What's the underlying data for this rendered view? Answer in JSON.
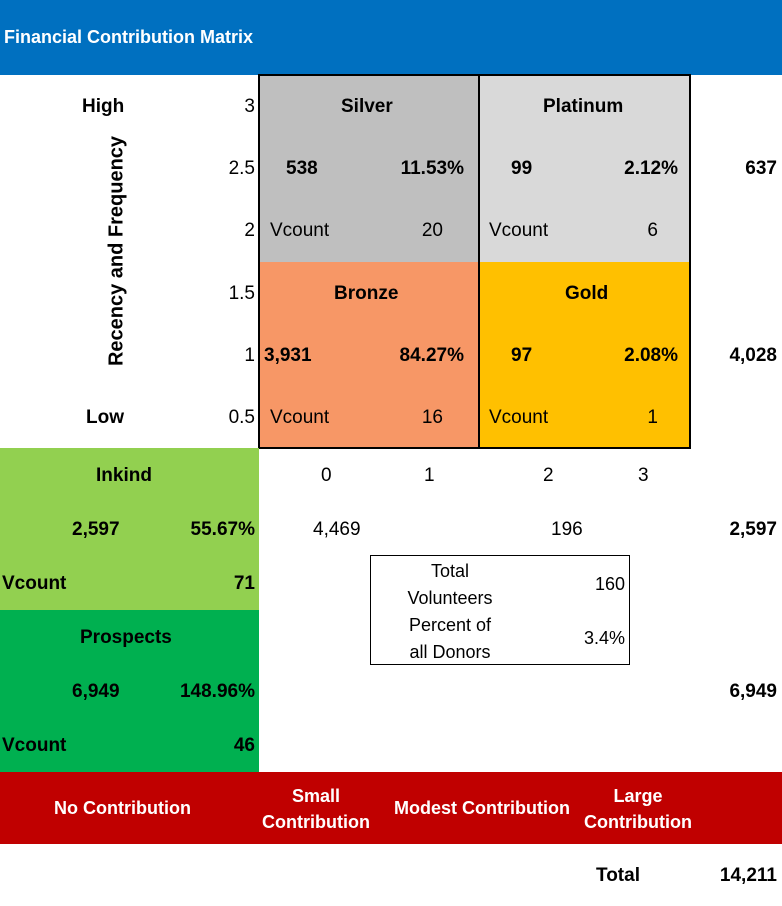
{
  "title": "Financial Contribution Matrix",
  "y_axis": {
    "label": "Recency and Frequency",
    "high": "High",
    "low": "Low",
    "ticks": [
      "3",
      "2.5",
      "2",
      "1.5",
      "1",
      "0.5"
    ]
  },
  "x_axis": {
    "ticks": [
      "0",
      "1",
      "2",
      "3"
    ]
  },
  "quadrants": {
    "silver": {
      "name": "Silver",
      "count": "538",
      "percent": "11.53%",
      "vcount_label": "Vcount",
      "vcount": "20",
      "color": "#bfbfbf"
    },
    "platinum": {
      "name": "Platinum",
      "count": "99",
      "percent": "2.12%",
      "vcount_label": "Vcount",
      "vcount": "6",
      "color": "#d9d9d9"
    },
    "bronze": {
      "name": "Bronze",
      "count": "3,931",
      "percent": "84.27%",
      "vcount_label": "Vcount",
      "vcount": "16",
      "color": "#f79766"
    },
    "gold": {
      "name": "Gold",
      "count": "97",
      "percent": "2.08%",
      "vcount_label": "Vcount",
      "vcount": "1",
      "color": "#ffc000"
    }
  },
  "inkind": {
    "name": "Inkind",
    "count": "2,597",
    "percent": "55.67%",
    "vcount_label": "Vcount",
    "vcount": "71",
    "color": "#92d050"
  },
  "prospects": {
    "name": "Prospects",
    "count": "6,949",
    "percent": "148.96%",
    "vcount_label": "Vcount",
    "vcount": "46",
    "color": "#00b050"
  },
  "row_totals": {
    "upper": "637",
    "lower": "4,028",
    "inkind": "2,597",
    "prospects": "6,949"
  },
  "column_totals": {
    "left": "4,469",
    "right": "196"
  },
  "volunteers_box": {
    "total_label_1": "Total",
    "total_label_2": "Volunteers",
    "total_value": "160",
    "percent_label_1": "Percent of",
    "percent_label_2": "all Donors",
    "percent_value": "3.4%"
  },
  "contribution_levels": {
    "none": "No Contribution",
    "small_1": "Small",
    "small_2": "Contribution",
    "modest": "Modest Contribution",
    "large_1": "Large",
    "large_2": "Contribution"
  },
  "grand_total": {
    "label": "Total",
    "value": "14,211"
  },
  "colors": {
    "title_bar": "#0070c0",
    "footer_bar": "#c00000"
  }
}
